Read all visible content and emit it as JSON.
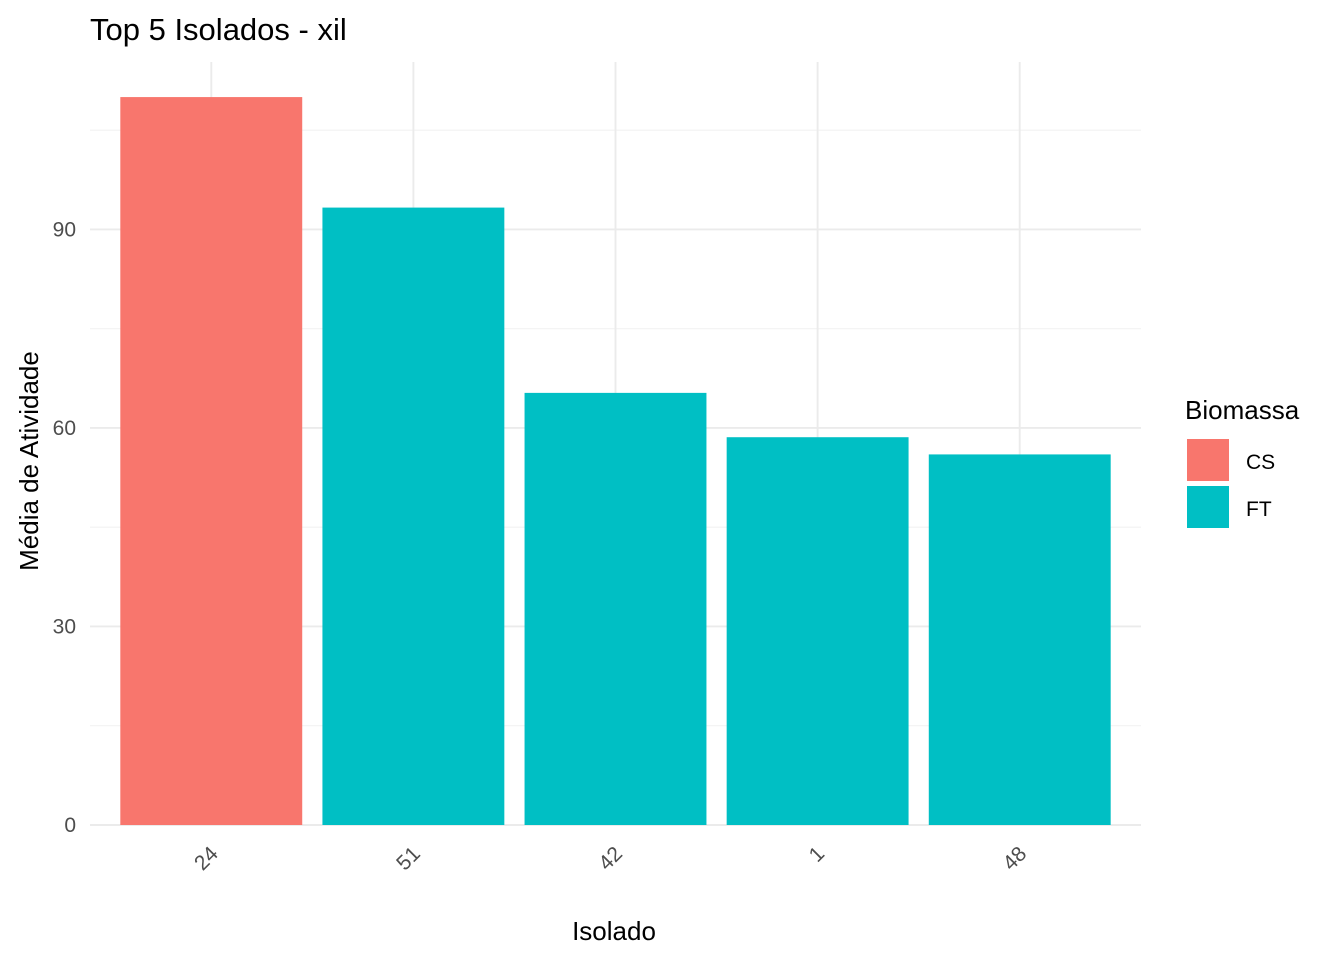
{
  "chart_data": {
    "type": "bar",
    "title": "Top 5 Isolados - xil",
    "xlabel": "Isolado",
    "ylabel": "Média de Atividade",
    "categories": [
      "24",
      "51",
      "42",
      "1",
      "48"
    ],
    "values": [
      110,
      93.3,
      65.3,
      58.6,
      56
    ],
    "groups": [
      "CS",
      "FT",
      "FT",
      "FT",
      "FT"
    ],
    "ylim": [
      0,
      115
    ],
    "yticks": [
      0,
      30,
      60,
      90
    ],
    "grid": true,
    "legend": {
      "title": "Biomassa",
      "position": "right",
      "entries": [
        {
          "label": "CS",
          "color": "#F8766D"
        },
        {
          "label": "FT",
          "color": "#00BFC4"
        }
      ]
    }
  }
}
